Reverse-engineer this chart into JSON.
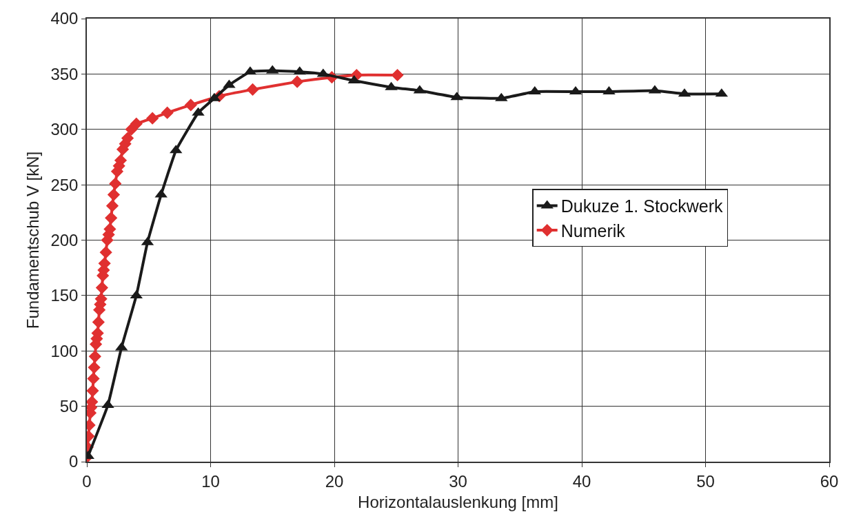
{
  "chart_data": {
    "type": "line",
    "xlabel": "Horizontalauslenkung [mm]",
    "ylabel": "Fundamentschub V [kN]",
    "xlim": [
      0,
      60
    ],
    "xticks": [
      0,
      10,
      20,
      30,
      40,
      50,
      60
    ],
    "ylim": [
      0,
      400
    ],
    "yticks": [
      0,
      50,
      100,
      150,
      200,
      250,
      300,
      350,
      400
    ],
    "grid": true,
    "legend": "right",
    "line_style": "solid",
    "series": [
      {
        "name": "Dukuze 1. Stockwerk",
        "color": "#1a1a1a",
        "marker": "triangle",
        "x": [
          0.1,
          1.7,
          2.8,
          4.0,
          4.9,
          6.0,
          7.2,
          9.0,
          10.3,
          11.5,
          13.2,
          15.0,
          17.2,
          19.1,
          21.6,
          24.6,
          26.9,
          29.9,
          33.5,
          36.2,
          39.5,
          42.2,
          45.9,
          48.3,
          51.3
        ],
        "values": [
          5,
          51,
          103,
          150,
          198,
          241,
          281,
          315,
          328,
          340,
          352,
          353,
          352,
          350,
          344,
          338,
          335,
          329,
          328,
          334,
          334,
          334,
          335,
          332,
          332
        ]
      },
      {
        "name": "Numerik",
        "color": "#e03030",
        "marker": "diamond",
        "x": [
          0,
          0.05,
          0.13,
          0.2,
          0.28,
          0.35,
          0.41,
          0.47,
          0.53,
          0.59,
          0.66,
          0.73,
          0.8,
          0.87,
          0.94,
          1.01,
          1.08,
          1.15,
          1.22,
          1.29,
          1.36,
          1.43,
          1.54,
          1.65,
          1.76,
          1.86,
          1.96,
          2.06,
          2.17,
          2.3,
          2.45,
          2.6,
          2.73,
          2.9,
          3.1,
          3.29,
          3.6,
          4.0,
          5.3,
          6.5,
          8.4,
          10.7,
          13.4,
          17.0,
          19.8,
          21.8,
          25.1
        ],
        "values": [
          4,
          13,
          23,
          33,
          44,
          49,
          54,
          64,
          75,
          85,
          95,
          106,
          111,
          116,
          126,
          137,
          142,
          147,
          157,
          168,
          173,
          179,
          189,
          200,
          205,
          210,
          220,
          231,
          241,
          251,
          262,
          267,
          272,
          282,
          287,
          292,
          300,
          305,
          310,
          315,
          322,
          330,
          336,
          343,
          347,
          349,
          349
        ]
      }
    ]
  }
}
